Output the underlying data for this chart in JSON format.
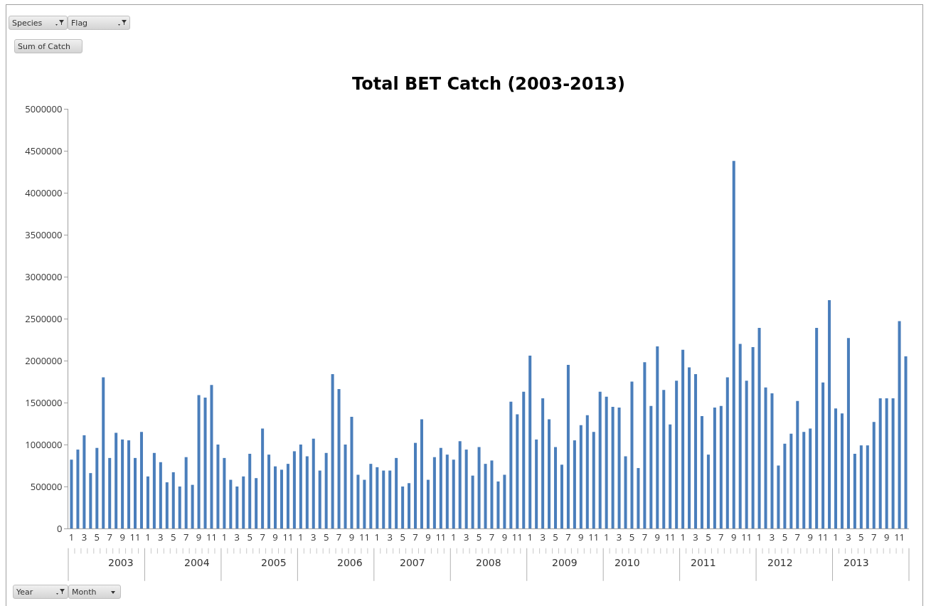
{
  "chart_data": {
    "type": "bar",
    "title": "Total BET Catch (2003-2013)",
    "categories": [
      "1",
      null,
      "3",
      null,
      "5",
      null,
      "7",
      null,
      "9",
      null,
      "11",
      null,
      "1",
      null,
      "3",
      null,
      "5",
      null,
      "7",
      null,
      "9",
      null,
      "11",
      null,
      "1",
      null,
      "3",
      null,
      "5",
      null,
      "7",
      null,
      "9",
      null,
      "11",
      null,
      "1",
      null,
      "3",
      null,
      "5",
      null,
      "7",
      null,
      "9",
      null,
      "11",
      null,
      "1",
      null,
      "3",
      null,
      "5",
      null,
      "7",
      null,
      "9",
      null,
      "11",
      null,
      "1",
      null,
      "3",
      null,
      "5",
      null,
      "7",
      null,
      "9",
      null,
      "11",
      null,
      "1",
      null,
      "3",
      null,
      "5",
      null,
      "7",
      null,
      "9",
      null,
      "11",
      null,
      "1",
      null,
      "3",
      null,
      "5",
      null,
      "7",
      null,
      "9",
      null,
      "11",
      null,
      "1",
      null,
      "3",
      null,
      "5",
      null,
      "7",
      null,
      "9",
      null,
      "11",
      null,
      "1",
      null,
      "3",
      null,
      "5",
      null,
      "7",
      null,
      "9",
      null,
      "11",
      null,
      "1",
      null,
      "3",
      null,
      "5",
      null,
      "7",
      null,
      "9",
      null,
      "11",
      null
    ],
    "values": [
      820000,
      940000,
      1110000,
      660000,
      960000,
      1800000,
      840000,
      1140000,
      1060000,
      1050000,
      840000,
      1150000,
      620000,
      900000,
      790000,
      550000,
      670000,
      500000,
      850000,
      520000,
      1590000,
      1560000,
      1710000,
      1000000,
      840000,
      580000,
      500000,
      620000,
      890000,
      600000,
      1190000,
      880000,
      740000,
      700000,
      770000,
      920000,
      1000000,
      860000,
      1070000,
      690000,
      900000,
      1840000,
      1660000,
      1000000,
      1330000,
      640000,
      580000,
      770000,
      730000,
      690000,
      690000,
      840000,
      500000,
      540000,
      1020000,
      1300000,
      580000,
      850000,
      960000,
      880000,
      820000,
      1040000,
      940000,
      630000,
      970000,
      770000,
      810000,
      560000,
      640000,
      1510000,
      1360000,
      1630000,
      2060000,
      1060000,
      1550000,
      1300000,
      970000,
      760000,
      1950000,
      1050000,
      1230000,
      1350000,
      1150000,
      1630000,
      1570000,
      1450000,
      1440000,
      860000,
      1750000,
      720000,
      1980000,
      1460000,
      2170000,
      1650000,
      1240000,
      1760000,
      2130000,
      1920000,
      1840000,
      1340000,
      880000,
      1440000,
      1460000,
      1800000,
      4380000,
      2200000,
      1760000,
      2160000,
      2390000,
      1680000,
      1610000,
      750000,
      1010000,
      1130000,
      1520000,
      1150000,
      1190000,
      2390000,
      1740000,
      2720000,
      1430000,
      1370000,
      2270000,
      890000,
      990000,
      990000,
      1270000,
      1550000,
      1550000,
      1550000,
      2470000,
      2050000
    ],
    "color": "#4a7ebb",
    "ylim": [
      0,
      5000000
    ],
    "yticks": [
      0,
      500000,
      1000000,
      1500000,
      2000000,
      2500000,
      3000000,
      3500000,
      4000000,
      4500000,
      5000000
    ],
    "annotations": [
      "2003",
      "2004",
      "2005",
      "2006",
      "2007",
      "2008",
      "2009",
      "2010",
      "2011",
      "2012",
      "2013",
      "Species",
      "Flag",
      "Sum of Catch",
      "Year",
      "Month"
    ]
  }
}
